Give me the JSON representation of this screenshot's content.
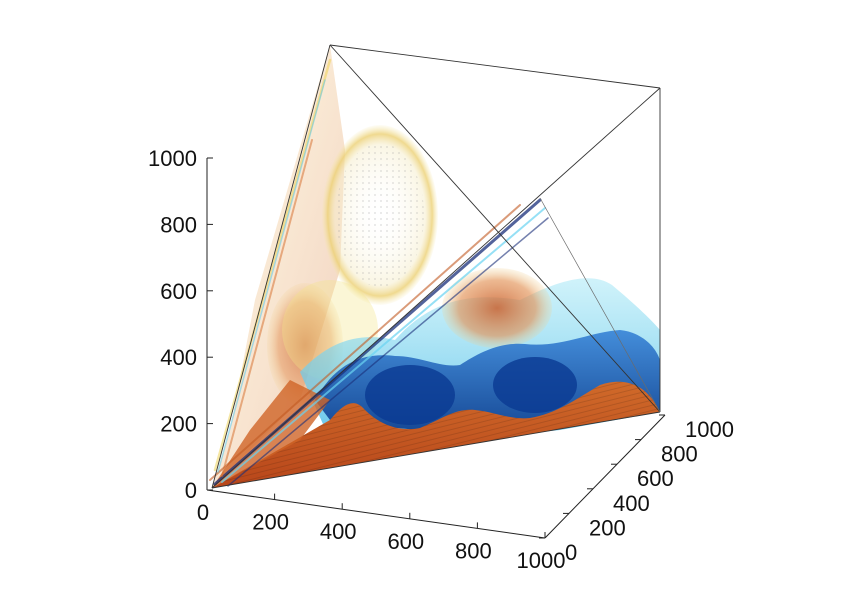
{
  "chart_data": {
    "type": "volume",
    "title": "",
    "xlabel": "",
    "ylabel": "",
    "zlabel": "",
    "xlim": [
      0,
      1000
    ],
    "ylim": [
      0,
      1000
    ],
    "zlim": [
      0,
      1000
    ],
    "xticks": [
      "0",
      "200",
      "400",
      "600",
      "800",
      "1000"
    ],
    "yticks": [
      "0",
      "200",
      "400",
      "600",
      "800",
      "1000"
    ],
    "zticks": [
      "0",
      "200",
      "400",
      "600",
      "800",
      "1000"
    ],
    "grid": false,
    "legend": "none",
    "colors": {
      "deep_orange": "#c2521b",
      "orange": "#e08a3c",
      "yellow": "#f2e27a",
      "dark_blue": "#0d3f8f",
      "blue": "#2b72c6",
      "cyan": "#5fd0ef",
      "pale_cyan": "#a8e6f5"
    }
  }
}
